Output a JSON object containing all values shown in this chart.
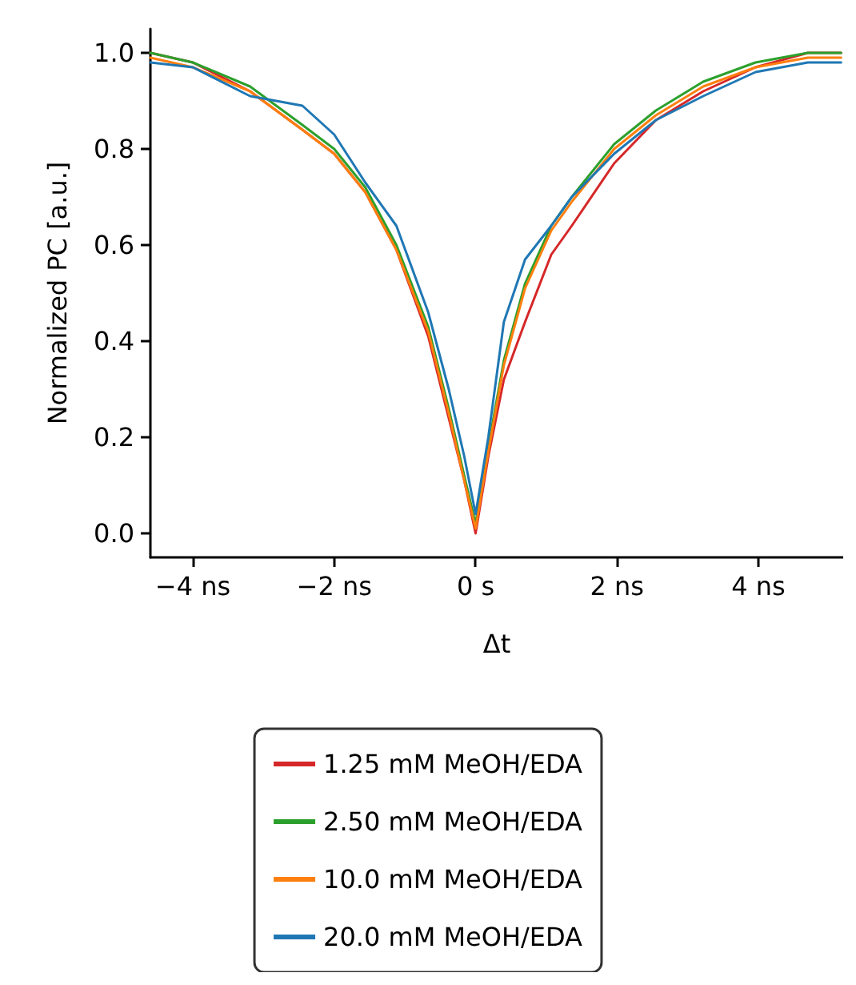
{
  "chart_data": {
    "type": "line",
    "xlabel": "Δt",
    "ylabel": "Normalized PC [a.u.]",
    "xlim": [
      -4.6,
      5.2
    ],
    "ylim": [
      -0.05,
      1.05
    ],
    "xticks": [
      {
        "value": -4,
        "label": "−4 ns"
      },
      {
        "value": -2,
        "label": "−2 ns"
      },
      {
        "value": 0,
        "label": "0 s"
      },
      {
        "value": 2,
        "label": "2 ns"
      },
      {
        "value": 4,
        "label": "4 ns"
      }
    ],
    "yticks": [
      {
        "value": 0,
        "label": "0.0"
      },
      {
        "value": 0.2,
        "label": "0.2"
      },
      {
        "value": 0.4,
        "label": "0.4"
      },
      {
        "value": 0.6,
        "label": "0.6"
      },
      {
        "value": 0.8,
        "label": "0.8"
      },
      {
        "value": 1,
        "label": "1.0"
      }
    ],
    "x": [
      -4.6,
      -4.0,
      -3.19,
      -2.45,
      -2.0,
      -1.56,
      -1.12,
      -0.67,
      -0.38,
      -0.16,
      0,
      0.18,
      0.4,
      0.7,
      1.07,
      1.36,
      1.96,
      2.55,
      3.22,
      3.96,
      4.7,
      5.17
    ],
    "series": [
      {
        "name": "1.25 mM MeOH/EDA",
        "color": "#d62728",
        "values": [
          1.0,
          0.98,
          0.92,
          0.84,
          0.79,
          0.71,
          0.59,
          0.41,
          0.24,
          0.11,
          0.0,
          0.16,
          0.32,
          0.44,
          0.58,
          0.64,
          0.77,
          0.86,
          0.92,
          0.97,
          1.0,
          1.0
        ]
      },
      {
        "name": "2.50 mM MeOH/EDA",
        "color": "#2ca02c",
        "values": [
          1.0,
          0.98,
          0.93,
          0.85,
          0.8,
          0.72,
          0.6,
          0.43,
          0.26,
          0.12,
          0.02,
          0.18,
          0.36,
          0.52,
          0.64,
          0.7,
          0.81,
          0.88,
          0.94,
          0.98,
          1.0,
          1.0
        ]
      },
      {
        "name": "10.0 mM MeOH/EDA",
        "color": "#ff7f0e",
        "values": [
          0.99,
          0.97,
          0.92,
          0.84,
          0.79,
          0.71,
          0.59,
          0.42,
          0.25,
          0.11,
          0.01,
          0.17,
          0.35,
          0.51,
          0.63,
          0.69,
          0.8,
          0.87,
          0.93,
          0.97,
          0.99,
          0.99
        ]
      },
      {
        "name": "20.0 mM MeOH/EDA",
        "color": "#1f77b4",
        "values": [
          0.98,
          0.97,
          0.91,
          0.89,
          0.83,
          0.73,
          0.64,
          0.46,
          0.3,
          0.16,
          0.04,
          0.2,
          0.44,
          0.57,
          0.64,
          0.7,
          0.79,
          0.86,
          0.91,
          0.96,
          0.98,
          0.98
        ]
      }
    ],
    "legend": "bottom",
    "grid": false,
    "marker": "none",
    "line_style": "solid"
  }
}
